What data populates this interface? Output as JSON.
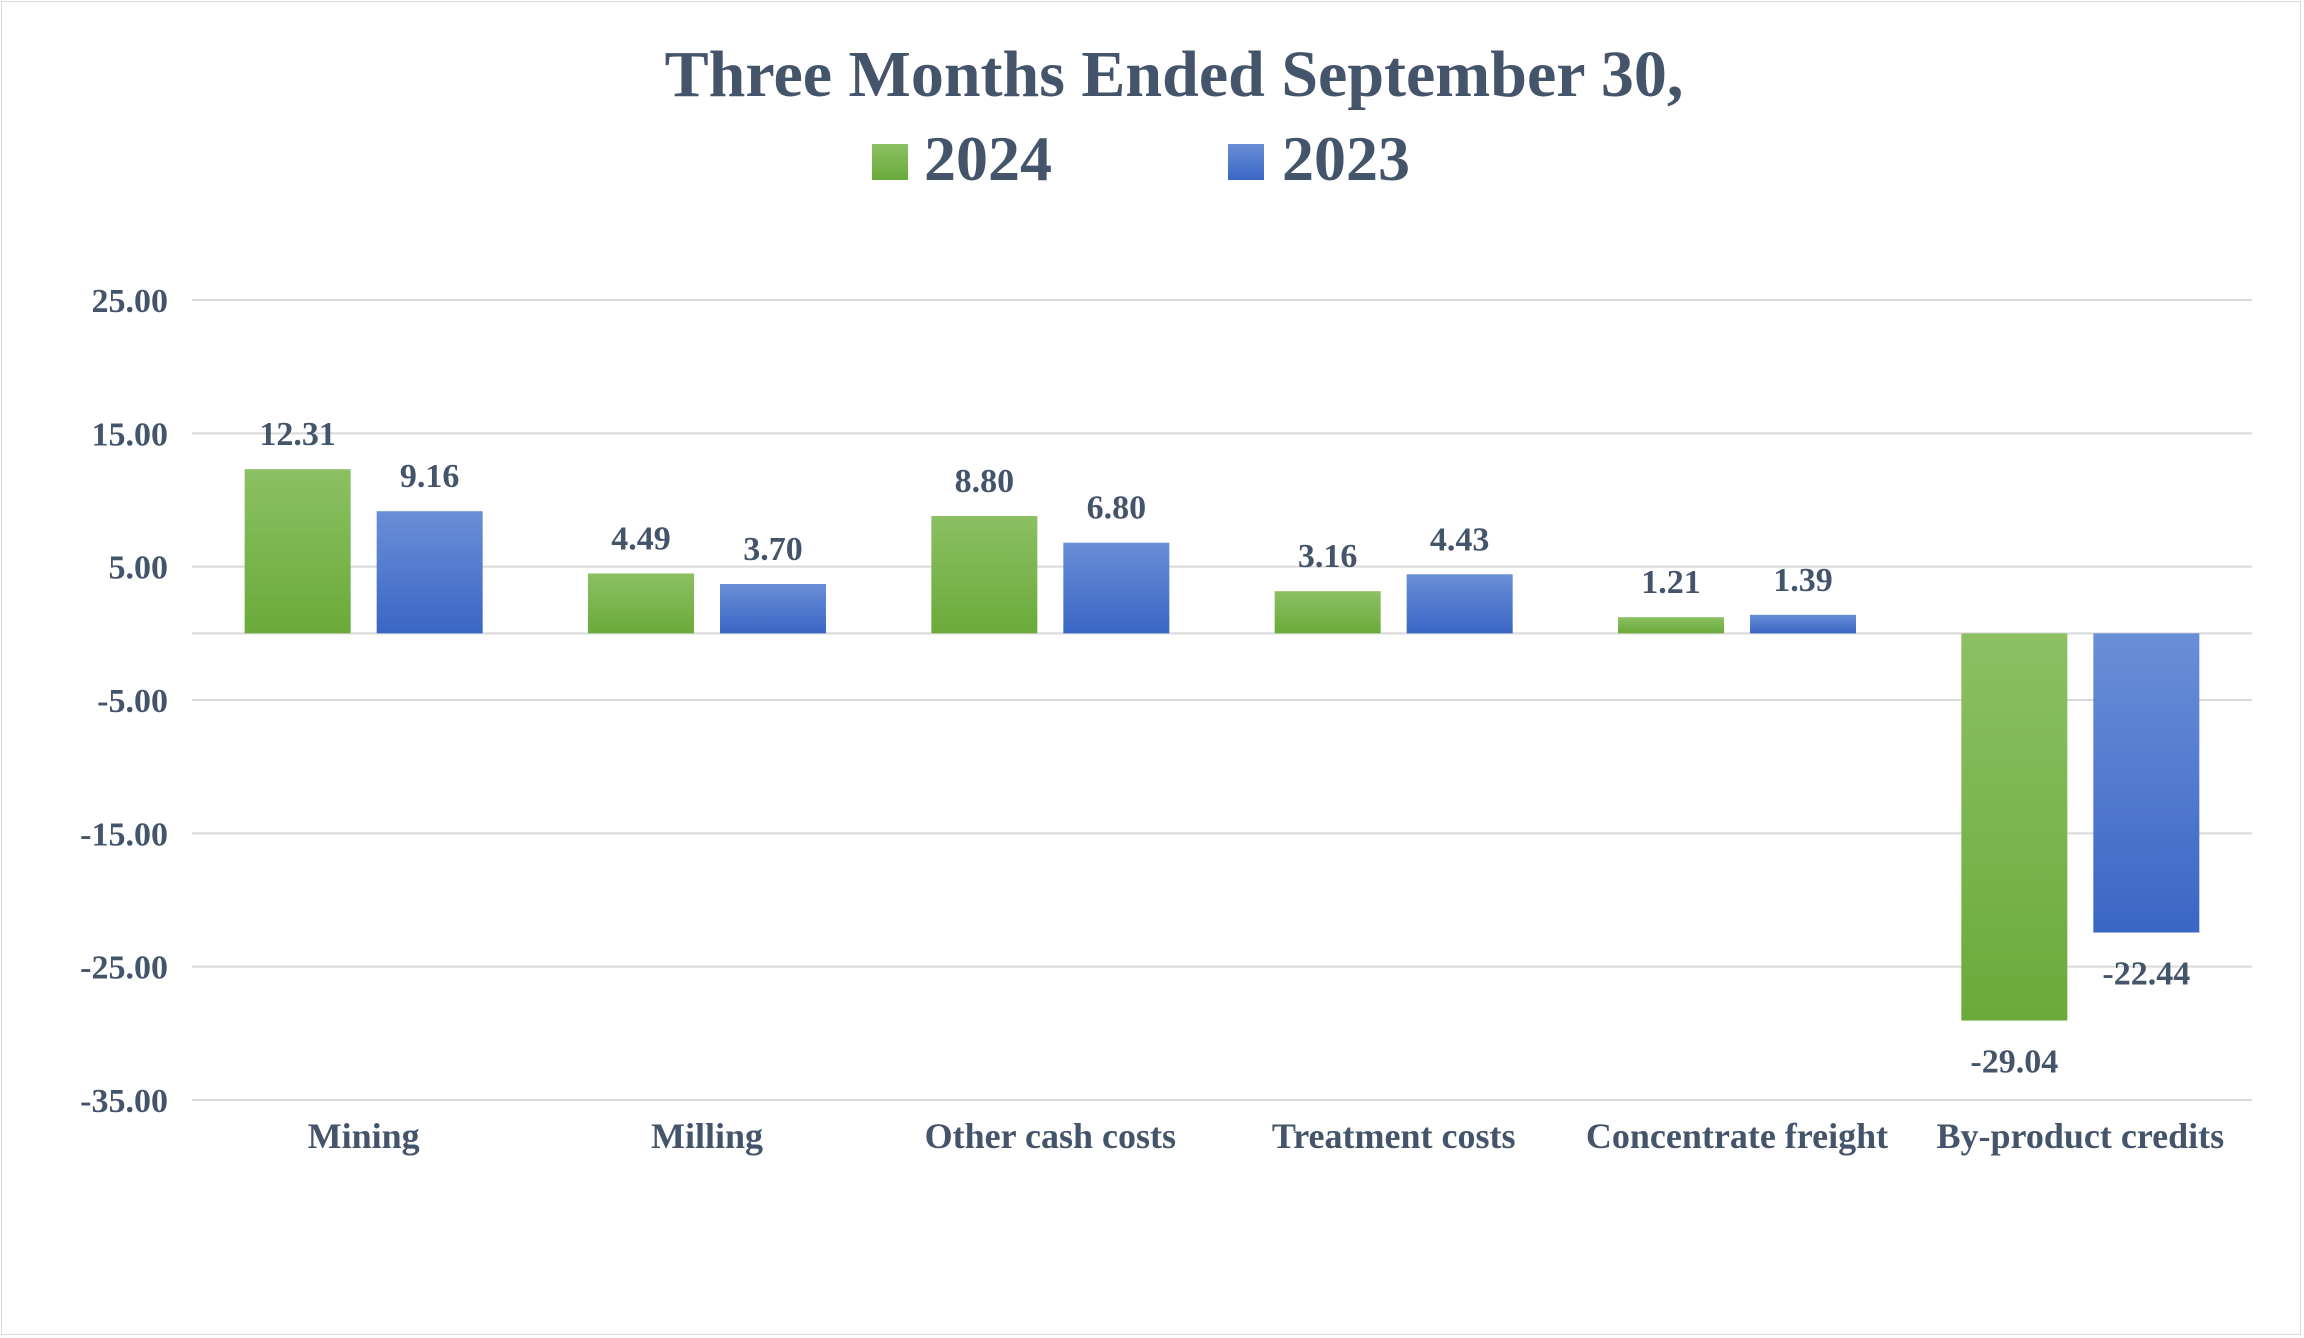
{
  "chart_data": {
    "type": "bar",
    "title": "Three Months Ended September 30,",
    "categories": [
      "Mining",
      "Milling",
      "Other cash costs",
      "Treatment costs",
      "Concentrate freight",
      "By-product credits"
    ],
    "series": [
      {
        "name": "2024",
        "values": [
          12.31,
          4.49,
          8.8,
          3.16,
          1.21,
          -29.04
        ],
        "labels": [
          "12.31",
          "4.49",
          "8.80",
          "3.16",
          "1.21",
          "-29.04"
        ],
        "color": "#6aaa3a",
        "color_light": "#8cc063"
      },
      {
        "name": "2023",
        "values": [
          9.16,
          3.7,
          6.8,
          4.43,
          1.39,
          -22.44
        ],
        "labels": [
          "9.16",
          "3.70",
          "6.80",
          "4.43",
          "1.39",
          "-22.44"
        ],
        "color": "#3a66c4",
        "color_light": "#6a8fd8"
      }
    ],
    "yticks": [
      25,
      15,
      5,
      -5,
      -15,
      -25,
      -35
    ],
    "ytick_labels": [
      "25.00",
      "15.00",
      "5.00",
      "-5.00",
      "-15.00",
      "-25.00",
      "-35.00"
    ],
    "ylim": [
      -35,
      25
    ],
    "legend_position": "top-center",
    "grid": true
  }
}
